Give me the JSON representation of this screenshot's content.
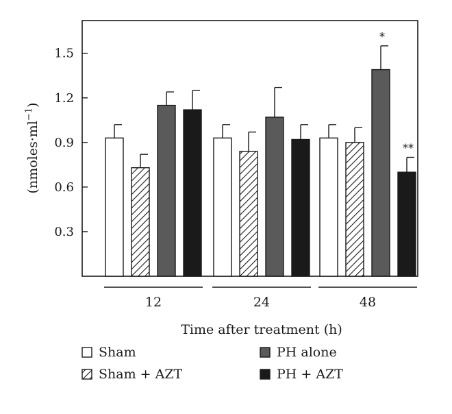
{
  "chart_data": {
    "type": "bar",
    "title": "",
    "xlabel": "Time after treatment (h)",
    "ylabel": "(nmoles·ml",
    "ylabel_sup": "−1",
    "ylabel_close": ")",
    "categories": [
      "12",
      "24",
      "48"
    ],
    "ylim": [
      0,
      1.72
    ],
    "yticks": [
      0.3,
      0.6,
      0.9,
      1.2,
      1.5
    ],
    "ytick_labels": [
      "0.3",
      "0.6",
      "0.9",
      "1.2",
      "1.5"
    ],
    "grid": false,
    "legend_position": "bottom",
    "series": [
      {
        "name": "Sham",
        "style": "white",
        "values": [
          0.93,
          0.93,
          0.93
        ],
        "errors": [
          0.09,
          0.09,
          0.09
        ]
      },
      {
        "name": "Sham + AZT",
        "style": "hatch",
        "values": [
          0.73,
          0.84,
          0.9
        ],
        "errors": [
          0.09,
          0.13,
          0.1
        ]
      },
      {
        "name": "PH alone",
        "style": "gray",
        "values": [
          1.15,
          1.07,
          1.39
        ],
        "errors": [
          0.09,
          0.2,
          0.16
        ]
      },
      {
        "name": "PH + AZT",
        "style": "black",
        "values": [
          1.12,
          0.92,
          0.7
        ],
        "errors": [
          0.13,
          0.1,
          0.1
        ]
      }
    ],
    "annotations": [
      {
        "category_index": 2,
        "series_index": 2,
        "text": "*"
      },
      {
        "category_index": 2,
        "series_index": 3,
        "text": "**"
      }
    ],
    "colors": {
      "white": "#ffffff",
      "gray": "#5a5a5a",
      "black": "#1a1a1a",
      "line": "#1a1a1a"
    }
  }
}
